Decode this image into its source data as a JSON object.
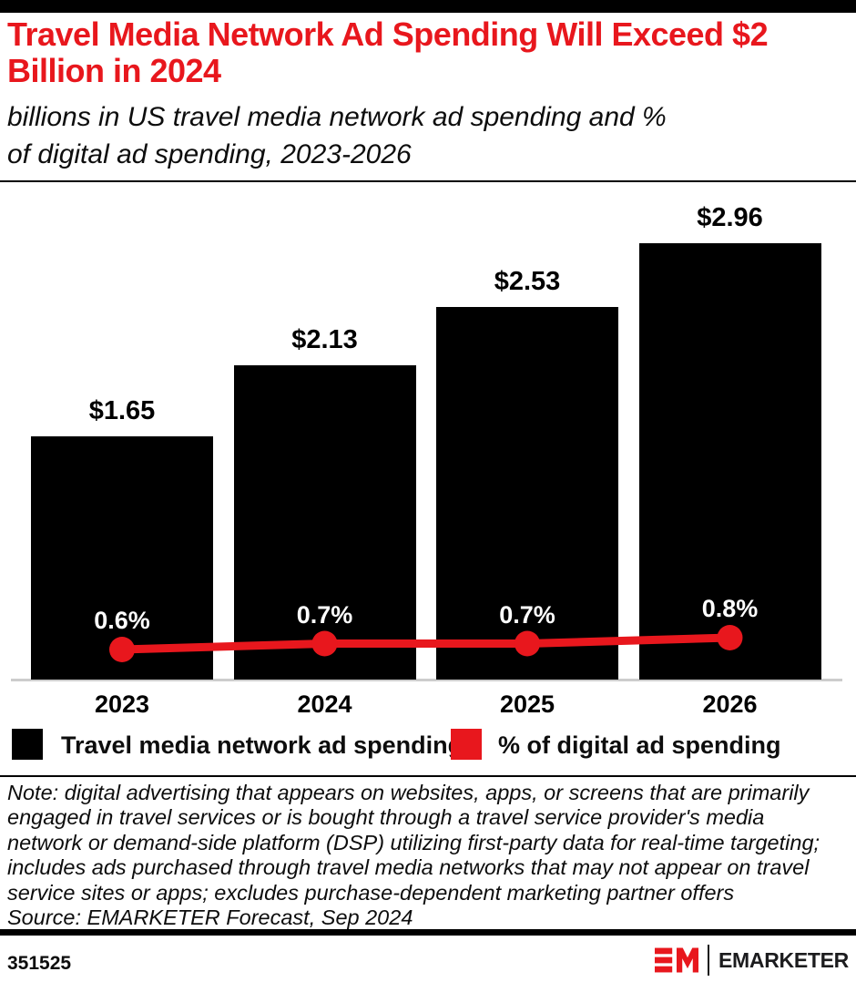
{
  "header": {
    "title_lines": [
      "Travel Media Network Ad Spending Will Exceed $2",
      "Billion in 2024"
    ],
    "subtitle_lines": [
      "billions in US travel media network ad spending and %",
      "of digital ad spending, 2023-2026"
    ]
  },
  "chart_data": {
    "type": "bar",
    "subtype": "bar-and-line-combo",
    "title": "Travel Media Network Ad Spending Will Exceed $2 Billion in 2024",
    "subtitle": "billions in US travel media network ad spending and % of digital ad spending, 2023-2026",
    "categories": [
      "2023",
      "2024",
      "2025",
      "2026"
    ],
    "series": [
      {
        "name": "Travel media network ad spending",
        "chart_type": "bar",
        "unit": "billions USD",
        "values": [
          1.65,
          2.13,
          2.53,
          2.96
        ],
        "data_labels": [
          "$1.65",
          "$2.13",
          "$2.53",
          "$2.96"
        ],
        "color": "#000000"
      },
      {
        "name": "% of digital ad spending",
        "chart_type": "line",
        "unit": "percent of digital ad spending",
        "values": [
          0.6,
          0.7,
          0.7,
          0.8
        ],
        "data_labels": [
          "0.6%",
          "0.7%",
          "0.7%",
          "0.8%"
        ],
        "color": "#E8171D"
      }
    ],
    "xlabel": "",
    "ylabel": "",
    "grid": false,
    "y_axis_shown": false,
    "legend_position": "bottom"
  },
  "legend": {
    "items": [
      {
        "label": "Travel media network ad spending",
        "color": "#000000"
      },
      {
        "label": "% of digital ad spending",
        "color": "#E8171D"
      }
    ]
  },
  "footnote": {
    "note_lines": [
      "Note: digital advertising that appears on websites, apps, or screens that are primarily",
      "engaged in travel services or is bought through a travel service provider's media",
      "network or demand-side platform (DSP) utilizing first-party data for real-time targeting;",
      "includes ads purchased through travel media networks that may not appear on travel",
      "service sites or apps; excludes purchase-dependent marketing partner offers"
    ],
    "source": "Source: EMARKETER Forecast, Sep 2024"
  },
  "footer": {
    "chart_id": "351525",
    "brand_wordmark": "EMARKETER",
    "logo_monogram": "EM"
  },
  "colors": {
    "brand_red": "#E8171D",
    "bar_black": "#000000",
    "axis_gray": "#CCCCCC"
  }
}
